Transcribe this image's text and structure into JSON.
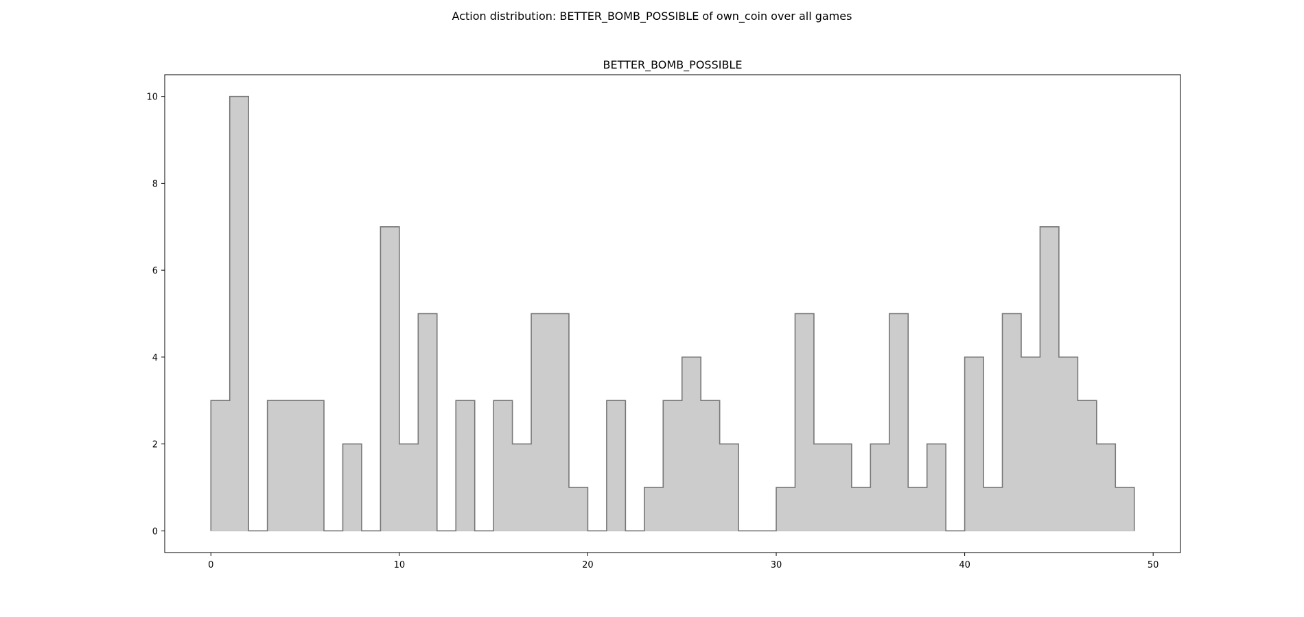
{
  "figure": {
    "suptitle": "Action distribution: BETTER_BOMB_POSSIBLE of own_coin over all games"
  },
  "chart_data": {
    "type": "area",
    "style": "step-histogram",
    "title": "BETTER_BOMB_POSSIBLE",
    "xlabel": "",
    "ylabel": "",
    "bin_edges": [
      0,
      1,
      2,
      3,
      4,
      5,
      6,
      7,
      8,
      9,
      10,
      11,
      12,
      13,
      14,
      15,
      16,
      17,
      18,
      19,
      20,
      21,
      22,
      23,
      24,
      25,
      26,
      27,
      28,
      29,
      30,
      31,
      32,
      33,
      34,
      35,
      36,
      37,
      38,
      39,
      40,
      41,
      42,
      43,
      44,
      45,
      46,
      47,
      48,
      49
    ],
    "values": [
      3,
      10,
      0,
      3,
      3,
      3,
      0,
      2,
      0,
      7,
      2,
      5,
      0,
      3,
      0,
      3,
      2,
      5,
      5,
      1,
      0,
      3,
      0,
      1,
      3,
      4,
      3,
      2,
      0,
      0,
      1,
      5,
      2,
      2,
      1,
      2,
      5,
      1,
      2,
      0,
      4,
      1,
      5,
      4,
      7,
      4,
      3,
      2,
      1
    ],
    "xlim": [
      -2.45,
      51.45
    ],
    "ylim": [
      -0.5,
      10.5
    ],
    "xticks": [
      0,
      10,
      20,
      30,
      40,
      50
    ],
    "yticks": [
      0,
      2,
      4,
      6,
      8,
      10
    ],
    "grid": false,
    "legend": "none",
    "fill_color": "#cccccc",
    "edge_color": "#777777"
  }
}
